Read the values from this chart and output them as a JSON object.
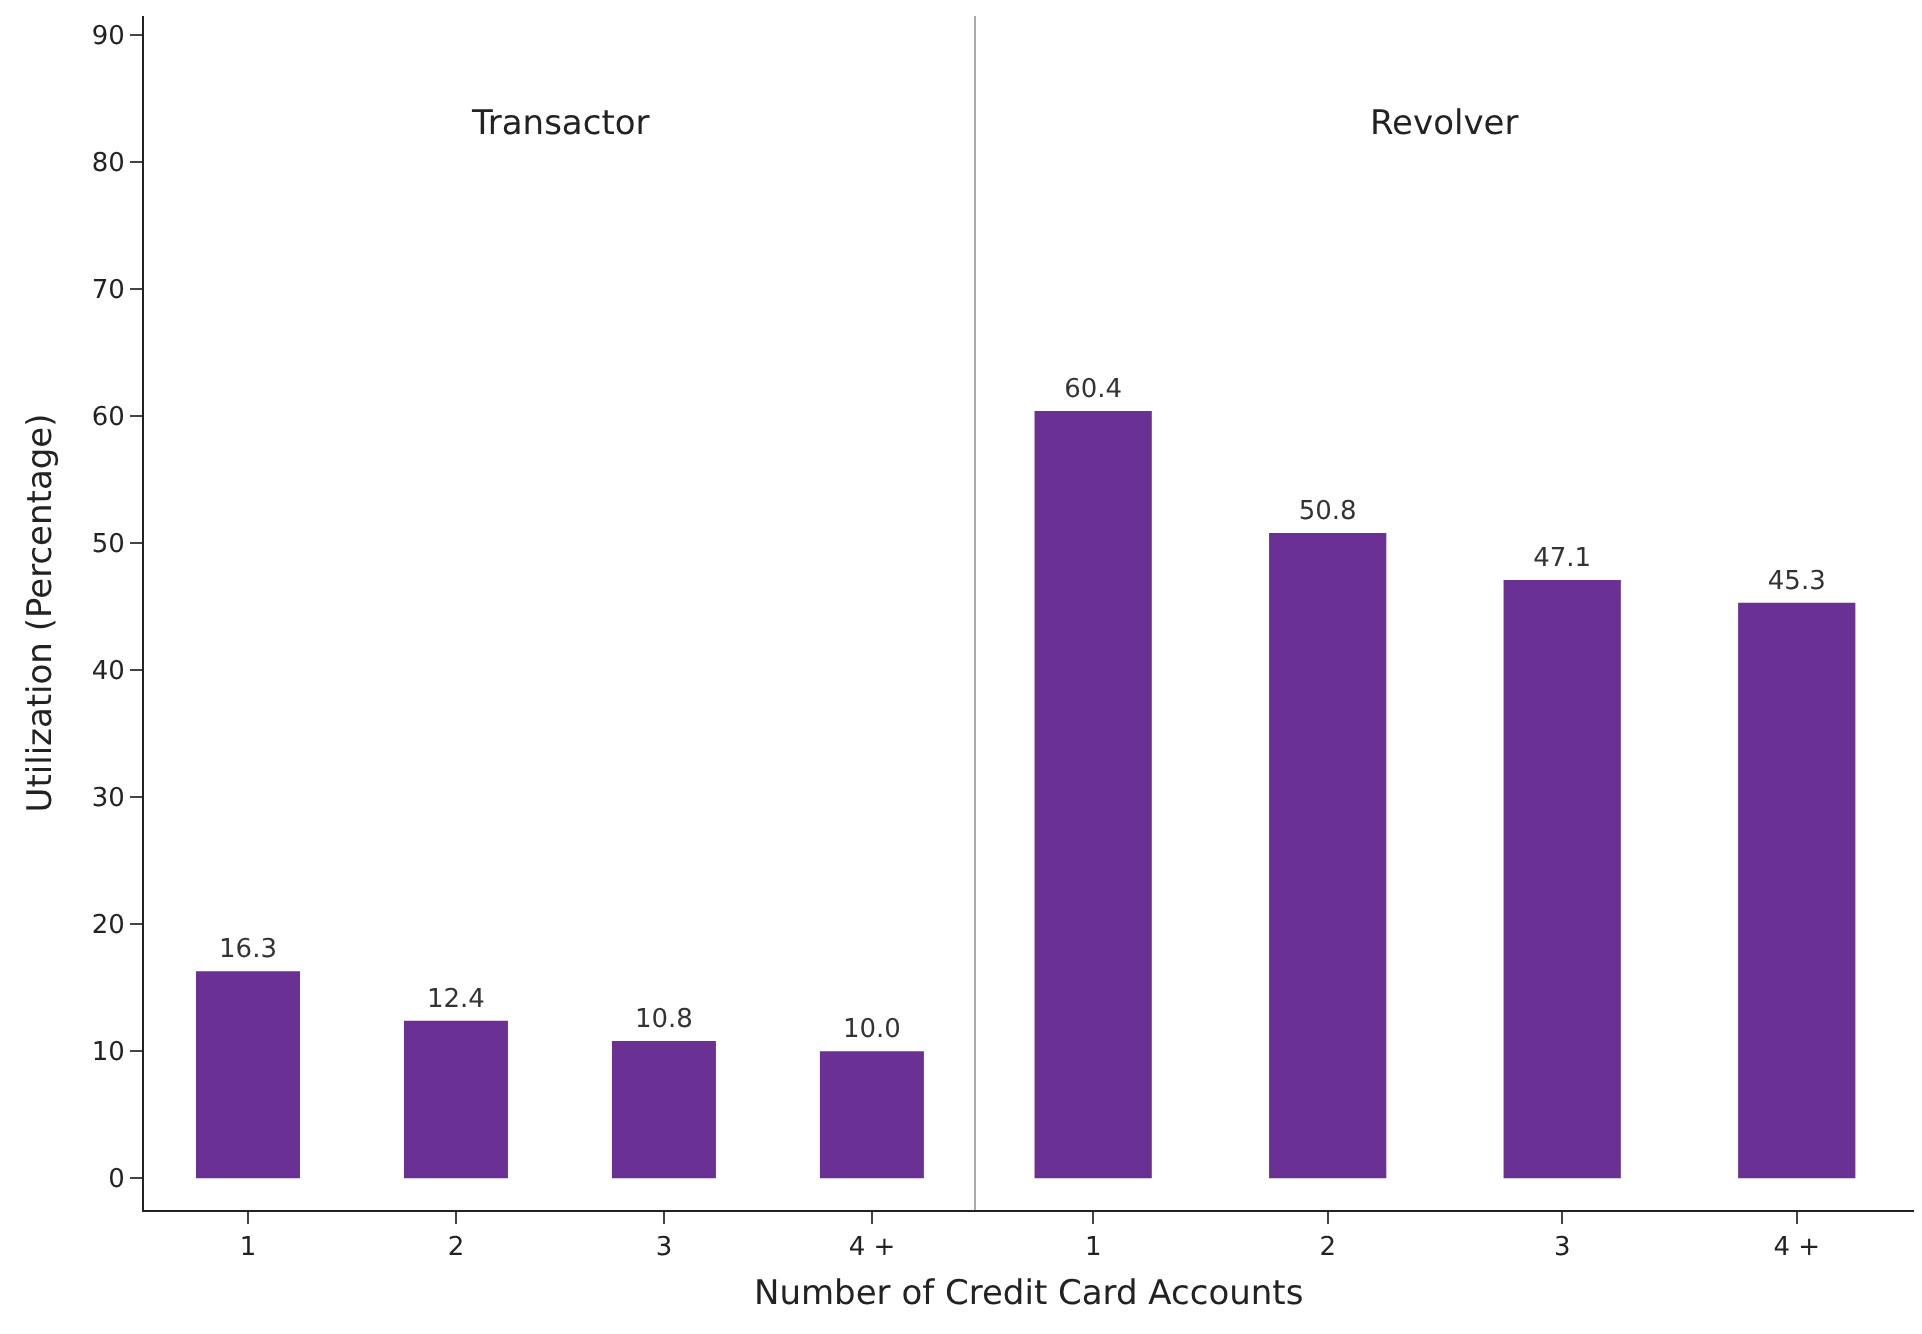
{
  "chart_data": [
    {
      "type": "bar",
      "title": "Transactor",
      "xlabel": "Number of Credit Card Accounts",
      "ylabel": "Utilization (Percentage)",
      "categories": [
        "1",
        "2",
        "3",
        "4 +"
      ],
      "values": [
        16.3,
        12.4,
        10.8,
        10.0
      ],
      "value_labels": [
        "16.3",
        "12.4",
        "10.8",
        "10.0"
      ],
      "color": "#6a3093",
      "ylim": [
        -2.5,
        91.5
      ],
      "yticks": [
        0,
        10,
        20,
        30,
        40,
        50,
        60,
        70,
        80,
        90
      ]
    },
    {
      "type": "bar",
      "title": "Revolver",
      "categories": [
        "1",
        "2",
        "3",
        "4 +"
      ],
      "values": [
        60.4,
        50.8,
        47.1,
        45.3
      ],
      "value_labels": [
        "60.4",
        "50.8",
        "47.1",
        "45.3"
      ],
      "color": "#6a3093",
      "ylim": [
        -2.5,
        91.5
      ],
      "yticks": [
        0,
        10,
        20,
        30,
        40,
        50,
        60,
        70,
        80,
        90
      ],
      "tick_labels": "x"
    }
  ]
}
